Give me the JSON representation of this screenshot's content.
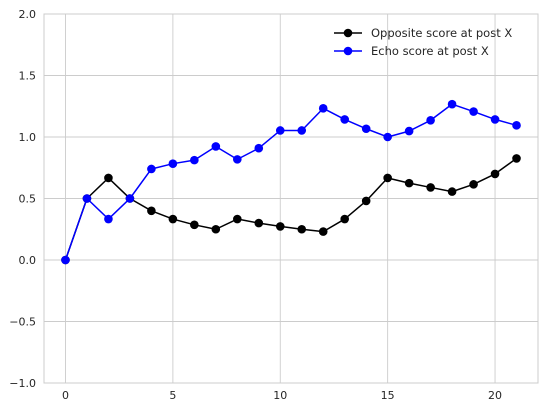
{
  "chart_data": {
    "type": "line",
    "title": "",
    "xlabel": "",
    "ylabel": "",
    "xlim": [
      -1,
      22
    ],
    "ylim": [
      -1.0,
      2.0
    ],
    "xticks": [
      0,
      5,
      10,
      15,
      20
    ],
    "yticks": [
      -1.0,
      -0.5,
      0.0,
      0.5,
      1.0,
      1.5,
      2.0
    ],
    "xtick_labels": [
      "0",
      "5",
      "10",
      "15",
      "20"
    ],
    "ytick_labels": [
      "−1.0",
      "−0.5",
      "0.0",
      "0.5",
      "1.0",
      "1.5",
      "2.0"
    ],
    "grid": true,
    "legend_position": "top-right",
    "x": [
      0,
      1,
      2,
      3,
      4,
      5,
      6,
      7,
      8,
      9,
      10,
      11,
      12,
      13,
      14,
      15,
      16,
      17,
      18,
      19,
      20,
      21
    ],
    "series": [
      {
        "name": "Opposite score at post X",
        "color": "#000000",
        "values": [
          0.0,
          0.5,
          0.667,
          0.5,
          0.4,
          0.333,
          0.286,
          0.25,
          0.333,
          0.3,
          0.273,
          0.25,
          0.231,
          0.333,
          0.48,
          0.667,
          0.625,
          0.59,
          0.556,
          0.615,
          0.7,
          0.826
        ]
      },
      {
        "name": "Echo score at post X",
        "color": "#0000ff",
        "values": [
          0.0,
          0.5,
          0.333,
          0.5,
          0.74,
          0.783,
          0.812,
          0.923,
          0.818,
          0.909,
          1.053,
          1.053,
          1.233,
          1.143,
          1.067,
          1.0,
          1.048,
          1.136,
          1.267,
          1.207,
          1.143,
          1.095
        ]
      }
    ]
  }
}
